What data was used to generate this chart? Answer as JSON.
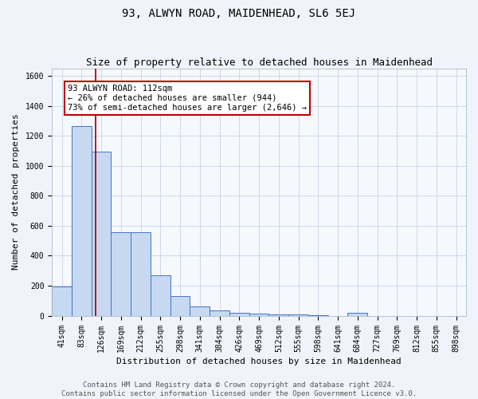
{
  "title": "93, ALWYN ROAD, MAIDENHEAD, SL6 5EJ",
  "subtitle": "Size of property relative to detached houses in Maidenhead",
  "xlabel": "Distribution of detached houses by size in Maidenhead",
  "ylabel": "Number of detached properties",
  "footer_line1": "Contains HM Land Registry data © Crown copyright and database right 2024.",
  "footer_line2": "Contains public sector information licensed under the Open Government Licence v3.0.",
  "bar_labels": [
    "41sqm",
    "83sqm",
    "126sqm",
    "169sqm",
    "212sqm",
    "255sqm",
    "298sqm",
    "341sqm",
    "384sqm",
    "426sqm",
    "469sqm",
    "512sqm",
    "555sqm",
    "598sqm",
    "641sqm",
    "684sqm",
    "727sqm",
    "769sqm",
    "812sqm",
    "855sqm",
    "898sqm"
  ],
  "bar_values": [
    195,
    1265,
    1095,
    555,
    555,
    270,
    130,
    60,
    35,
    20,
    12,
    10,
    8,
    5,
    0,
    17,
    0,
    0,
    0,
    0,
    0
  ],
  "bar_color": "#c6d9f1",
  "bar_edge_color": "#4472c4",
  "vline_color": "#c00000",
  "annotation_text": "93 ALWYN ROAD: 112sqm\n← 26% of detached houses are smaller (944)\n73% of semi-detached houses are larger (2,646) →",
  "annotation_box_color": "#ffffff",
  "annotation_box_edge_color": "#c00000",
  "ylim": [
    0,
    1650
  ],
  "yticks": [
    0,
    200,
    400,
    600,
    800,
    1000,
    1200,
    1400,
    1600
  ],
  "background_color": "#f0f4fa",
  "plot_background_color": "#f5f8fd",
  "grid_color": "#c8d4e8",
  "title_fontsize": 10,
  "subtitle_fontsize": 9,
  "axis_label_fontsize": 8,
  "tick_fontsize": 7,
  "annotation_fontsize": 7.5,
  "footer_fontsize": 6.5
}
